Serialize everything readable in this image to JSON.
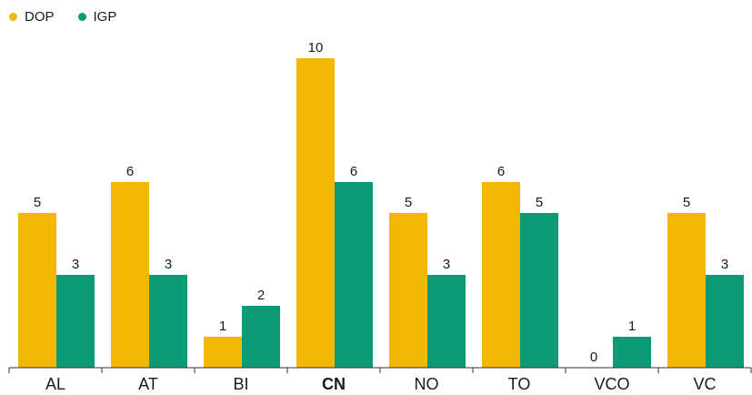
{
  "chart_data": {
    "type": "bar",
    "categories": [
      "AL",
      "AT",
      "BI",
      "CN",
      "NO",
      "TO",
      "VCO",
      "VC"
    ],
    "highlighted_category": "CN",
    "series": [
      {
        "name": "DOP",
        "color": "#f2b705",
        "values": [
          5,
          6,
          1,
          10,
          5,
          6,
          0,
          5
        ]
      },
      {
        "name": "IGP",
        "color": "#0b9a74",
        "values": [
          3,
          3,
          2,
          6,
          3,
          5,
          1,
          3
        ]
      }
    ],
    "ylim": [
      0,
      10
    ],
    "grid": false,
    "legend_position": "top-left",
    "data_labels": true
  }
}
